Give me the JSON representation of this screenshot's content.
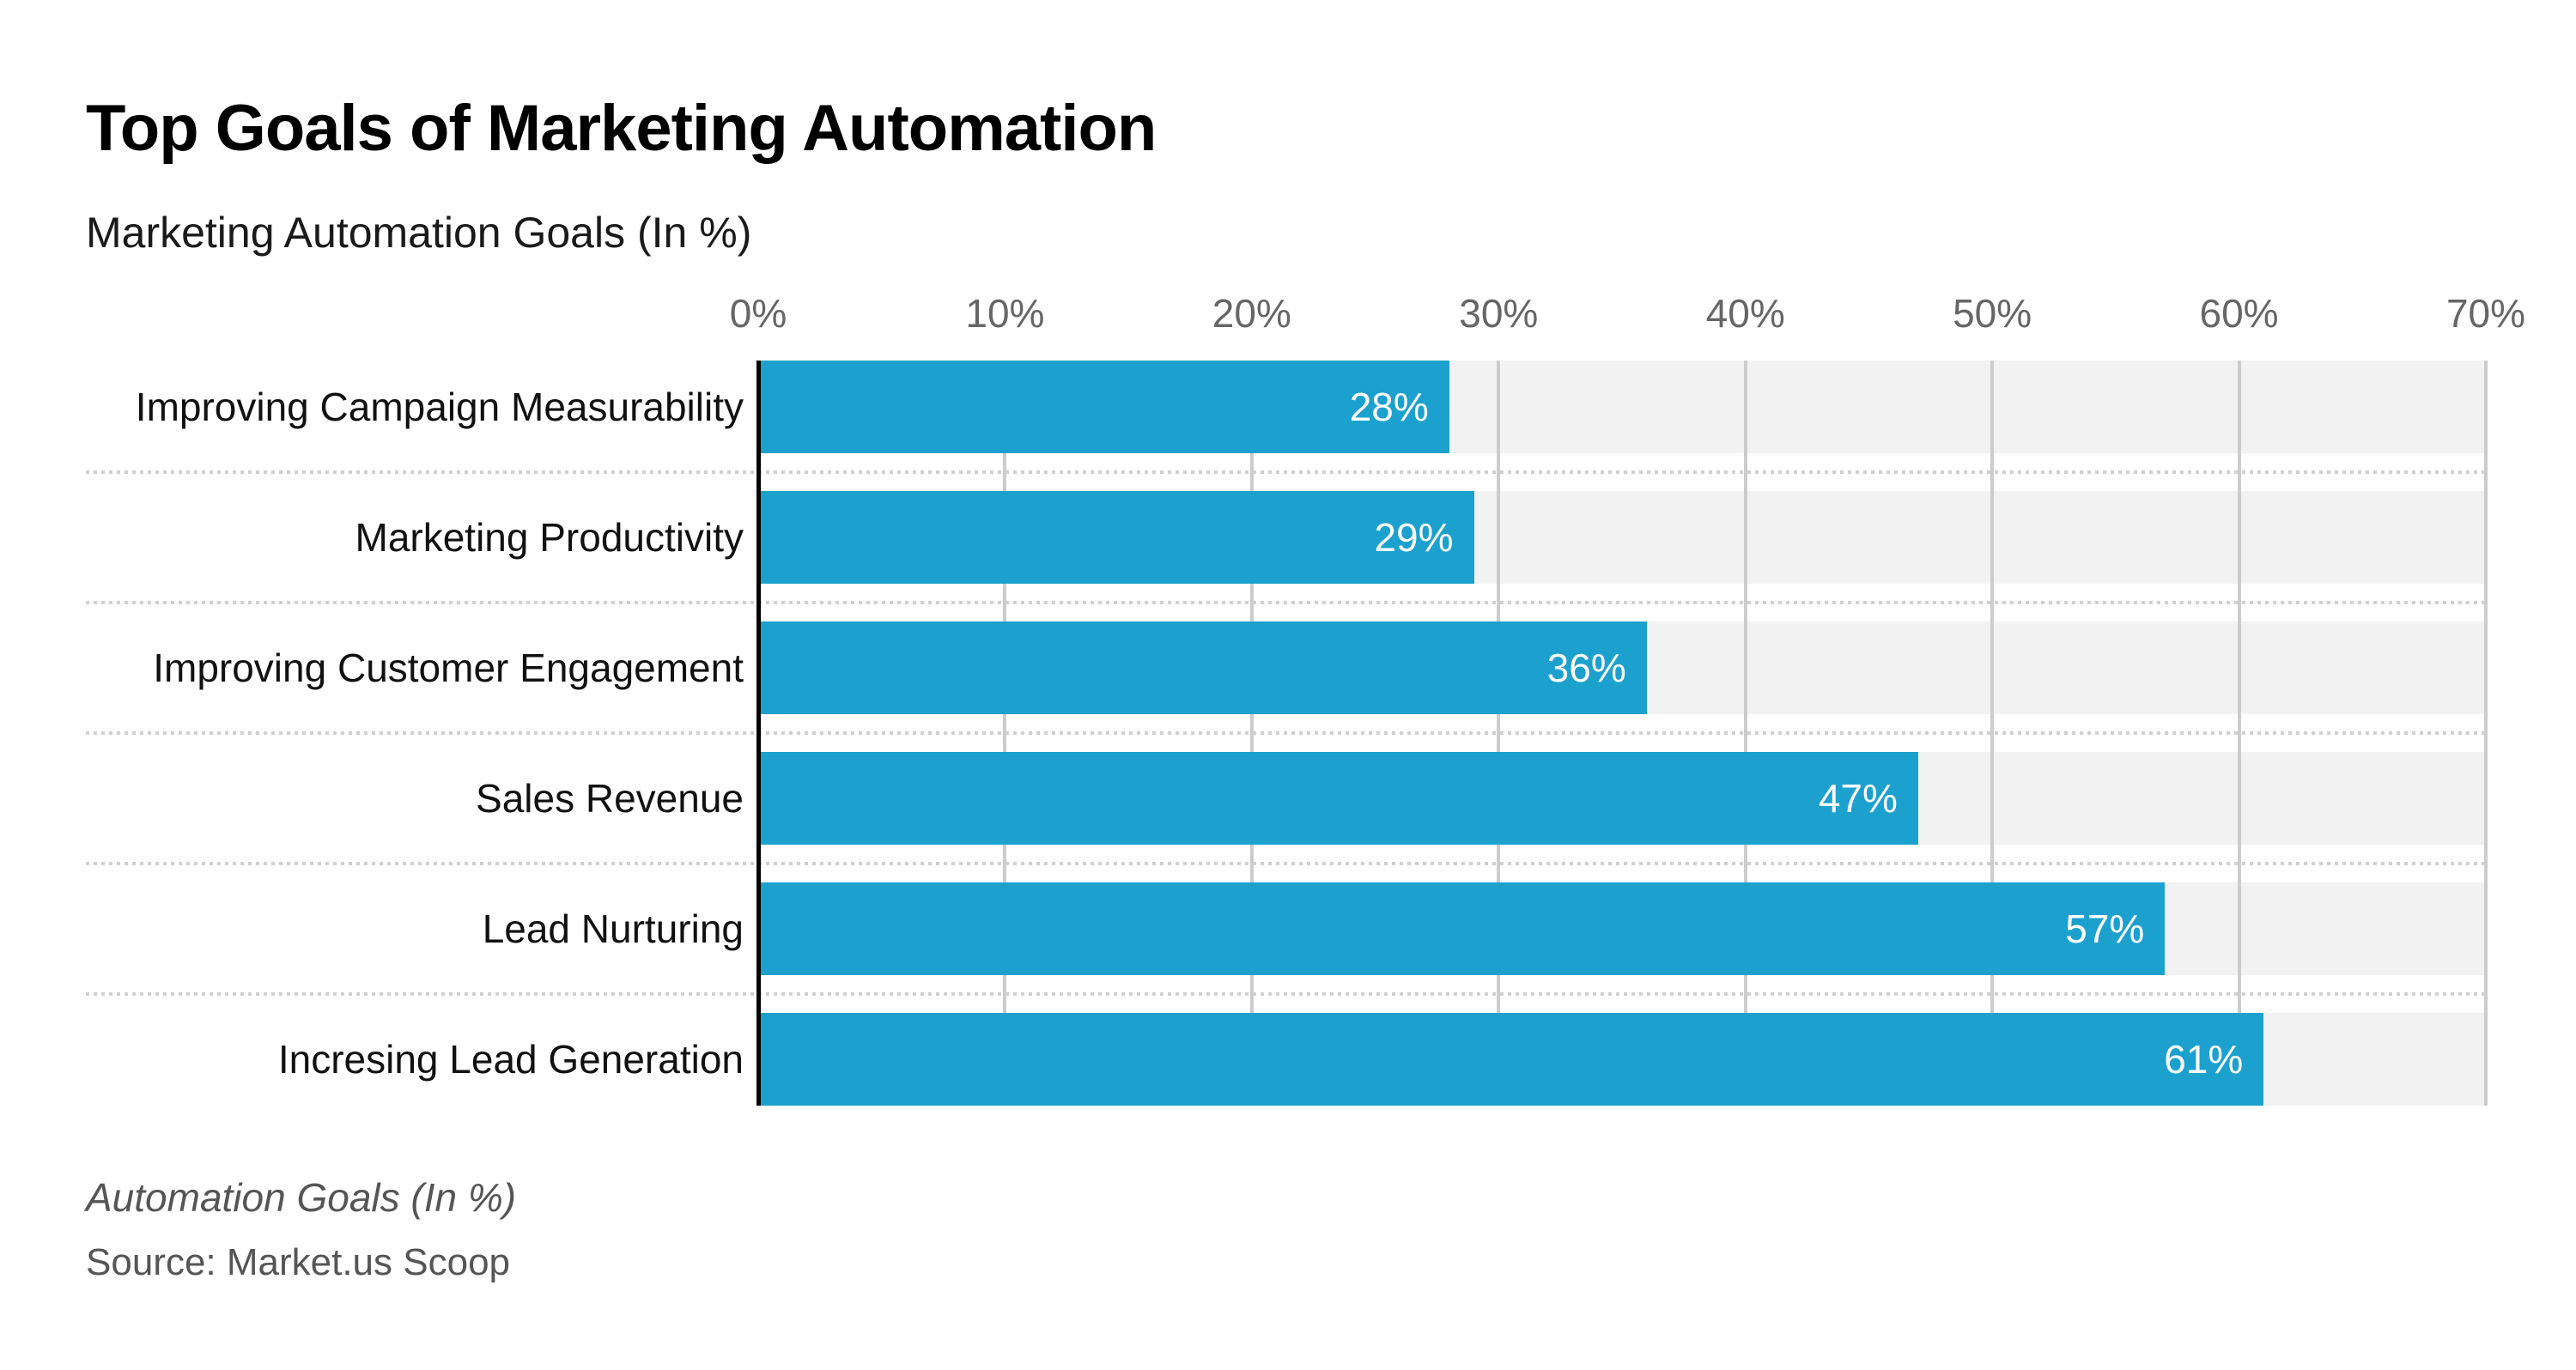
{
  "header": {
    "title": "Top Goals of Marketing Automation",
    "subtitle": "Marketing Automation Goals (In %)"
  },
  "footer": {
    "caption": "Automation Goals (In %)",
    "source": "Source: Market.us Scoop"
  },
  "chart_data": {
    "type": "bar",
    "orientation": "horizontal",
    "title": "Top Goals of Marketing Automation",
    "subtitle": "Marketing Automation Goals (In %)",
    "categories": [
      "Improving Campaign Measurability",
      "Marketing Productivity",
      "Improving Customer Engagement",
      "Sales Revenue",
      "Lead Nurturing",
      "Incresing Lead Generation"
    ],
    "values": [
      28,
      29,
      36,
      47,
      57,
      61
    ],
    "value_labels": [
      "28%",
      "29%",
      "36%",
      "47%",
      "57%",
      "61%"
    ],
    "x_ticks": [
      "0%",
      "10%",
      "20%",
      "30%",
      "40%",
      "50%",
      "60%",
      "70%"
    ],
    "xlim": [
      0,
      70
    ],
    "grid": "vertical-gridlines-on",
    "legend": "none",
    "xlabel": "",
    "ylabel": "",
    "colors": {
      "bar": "#1CA1CE",
      "track": "#F2F2F2",
      "gridline": "#CCCCCC",
      "axis": "#000000",
      "separator": "#D0D0D0",
      "tick_label": "#666666",
      "category_label": "#111111",
      "value_label": "#FFFFFF",
      "title": "#000000",
      "footer": "#555555"
    }
  }
}
